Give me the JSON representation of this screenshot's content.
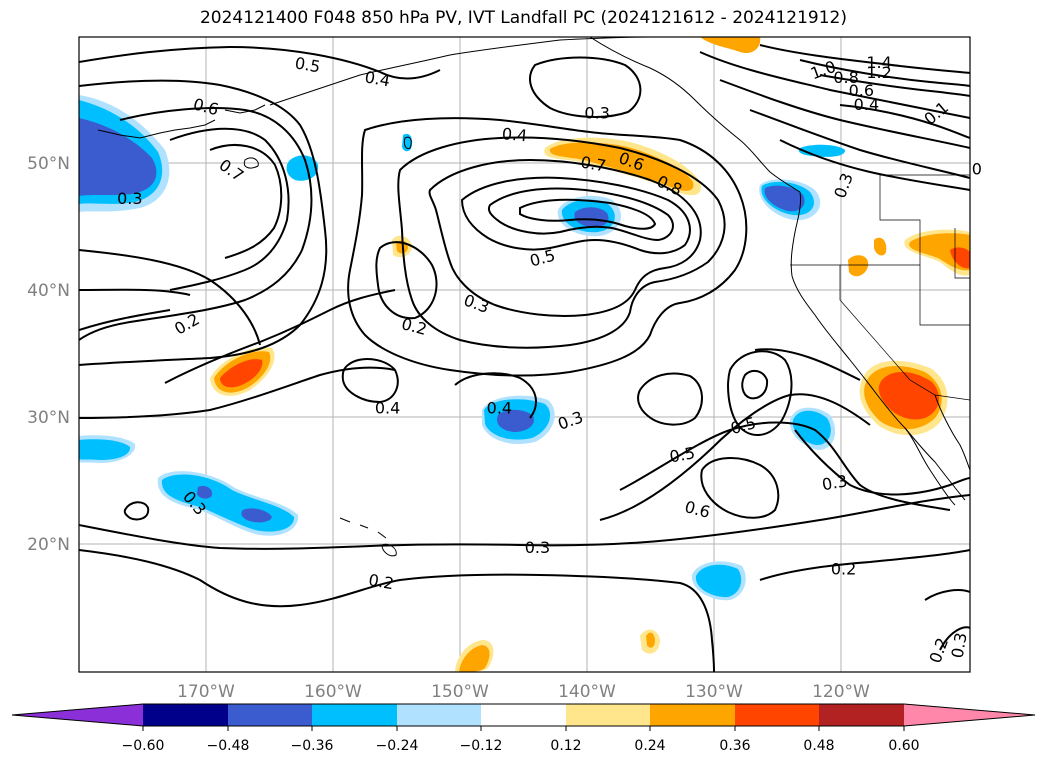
{
  "title": "2024121400 F048 850 hPa PV, IVT Landfall PC (2024121612 - 2024121912)",
  "map": {
    "lon_labels": [
      "170°W",
      "160°W",
      "150°W",
      "140°W",
      "130°W",
      "120°W"
    ],
    "lat_labels": [
      "50°N",
      "40°N",
      "30°N",
      "20°N"
    ],
    "contour_labels": [
      {
        "text": "0.5",
        "lon": -162,
        "lat": 57.8,
        "rot": 10
      },
      {
        "text": "0.4",
        "lon": -156.5,
        "lat": 56.7,
        "rot": 10
      },
      {
        "text": "0.6",
        "lon": -170,
        "lat": 54.5,
        "rot": 15
      },
      {
        "text": "0.7",
        "lon": -168,
        "lat": 49.5,
        "rot": 35
      },
      {
        "text": "0.3",
        "lon": -176,
        "lat": 47.3,
        "rot": 0
      },
      {
        "text": "0.3",
        "lon": -139.2,
        "lat": 54.0,
        "rot": 0
      },
      {
        "text": "0.4",
        "lon": -145.7,
        "lat": 52.3,
        "rot": 5
      },
      {
        "text": "0.7",
        "lon": -139.5,
        "lat": 50.0,
        "rot": 10
      },
      {
        "text": "0.6",
        "lon": -136.5,
        "lat": 50.2,
        "rot": 20
      },
      {
        "text": "0.8",
        "lon": -133.5,
        "lat": 48.3,
        "rot": 25
      },
      {
        "text": "0.5",
        "lon": -143.5,
        "lat": 42.6,
        "rot": -15
      },
      {
        "text": "0.3",
        "lon": -148.7,
        "lat": 39.0,
        "rot": 20
      },
      {
        "text": "0.2",
        "lon": -153.6,
        "lat": 37.2,
        "rot": 15
      },
      {
        "text": "0.2",
        "lon": -171.5,
        "lat": 37.4,
        "rot": -30
      },
      {
        "text": "0.4",
        "lon": -155.7,
        "lat": 30.8,
        "rot": 0
      },
      {
        "text": "0.4",
        "lon": -146.9,
        "lat": 30.8,
        "rot": 0
      },
      {
        "text": "0.3",
        "lon": -141.3,
        "lat": 29.8,
        "rot": -20
      },
      {
        "text": "0.5",
        "lon": -132.5,
        "lat": 27.1,
        "rot": -10
      },
      {
        "text": "0.5",
        "lon": -127.7,
        "lat": 29.4,
        "rot": -15
      },
      {
        "text": "0.6",
        "lon": -131.3,
        "lat": 22.8,
        "rot": 15
      },
      {
        "text": "0.3",
        "lon": -170.9,
        "lat": 23.3,
        "rot": 50
      },
      {
        "text": "0.3",
        "lon": -143.9,
        "lat": 19.8,
        "rot": 0
      },
      {
        "text": "0.2",
        "lon": -156.2,
        "lat": 17.1,
        "rot": 10
      },
      {
        "text": "0.2",
        "lon": -119.8,
        "lat": 18.1,
        "rot": 0
      },
      {
        "text": "0.3",
        "lon": -120.5,
        "lat": 24.9,
        "rot": -10
      },
      {
        "text": "0.3",
        "lon": -119.8,
        "lat": 48.3,
        "rot": -70
      },
      {
        "text": "0.1",
        "lon": -112.5,
        "lat": 54.0,
        "rot": -40
      },
      {
        "text": "0.4",
        "lon": -118,
        "lat": 54.7,
        "rot": 0
      },
      {
        "text": "0.6",
        "lon": -118.4,
        "lat": 55.8,
        "rot": 0
      },
      {
        "text": "0.8",
        "lon": -119.6,
        "lat": 56.8,
        "rot": 0
      },
      {
        "text": "1.0",
        "lon": -121.4,
        "lat": 57.4,
        "rot": -20
      },
      {
        "text": "1.2",
        "lon": -117,
        "lat": 57.2,
        "rot": 0
      },
      {
        "text": "1.4",
        "lon": -117,
        "lat": 58.0,
        "rot": 0
      },
      {
        "text": "0.2",
        "lon": -112.3,
        "lat": 11.7,
        "rot": -70
      },
      {
        "text": "0.3",
        "lon": -110.7,
        "lat": 12.1,
        "rot": -80
      },
      {
        "text": "0",
        "lon": -109.3,
        "lat": 49.6,
        "rot": 0
      }
    ]
  },
  "colorbar": {
    "colors": [
      "#8b2fd8",
      "#00008b",
      "#3a5ccf",
      "#00bfff",
      "#b0e2ff",
      "#ffffff",
      "#ffe68c",
      "#ffa500",
      "#ff4500",
      "#b22222",
      "#ff88aa"
    ],
    "tick_labels": [
      "−0.60",
      "−0.48",
      "−0.36",
      "−0.24",
      "−0.12",
      "0.12",
      "0.24",
      "0.36",
      "0.48",
      "0.60"
    ]
  }
}
